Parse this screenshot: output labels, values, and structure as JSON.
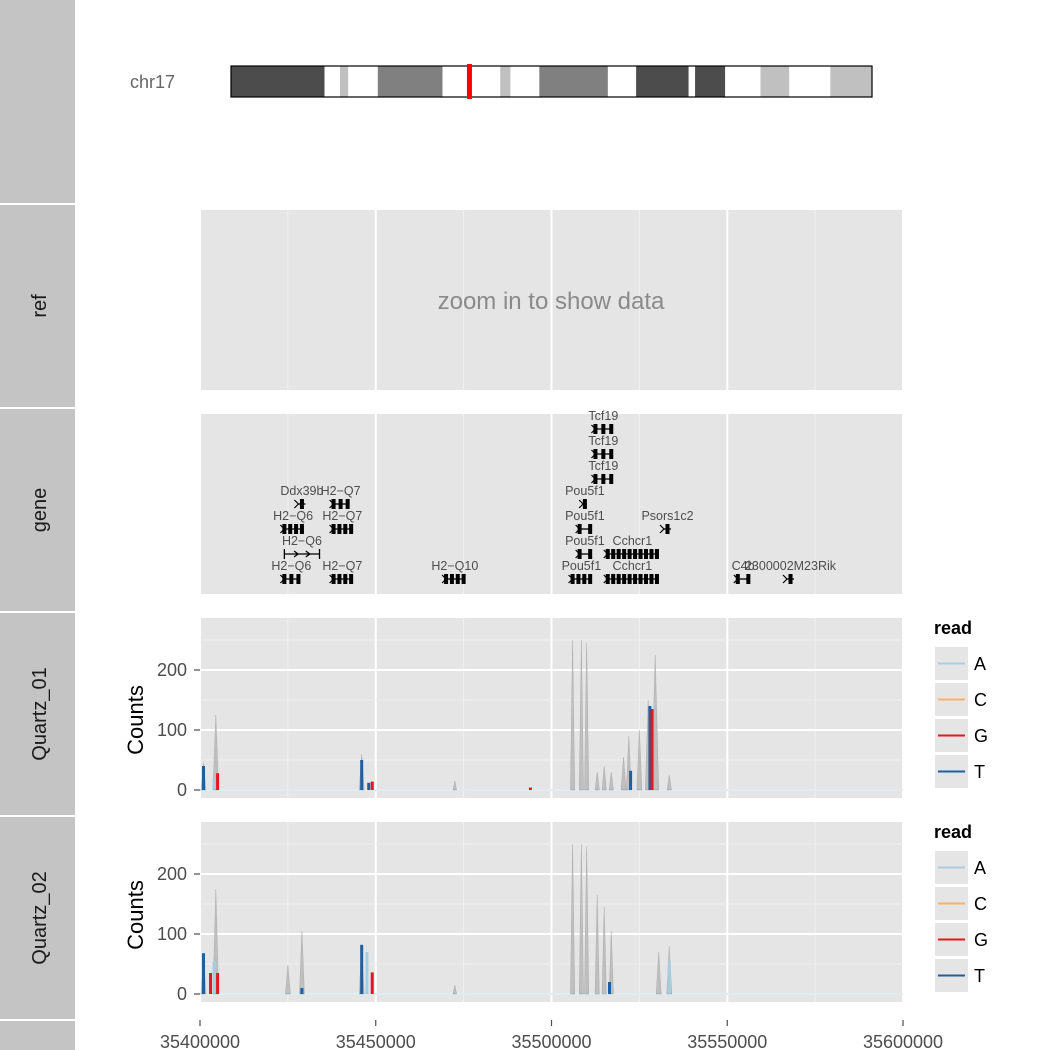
{
  "chart_data": {
    "type": "tracks",
    "xlim": [
      35400000,
      35600000
    ],
    "x_ticks": [
      35400000,
      35450000,
      35500000,
      35550000,
      35600000
    ],
    "x_tick_labels": [
      "35400000",
      "35450000",
      "35500000",
      "35550000",
      "35600000"
    ],
    "colors": {
      "A": "#a6cee3",
      "C": "#fdae6b",
      "G": "#e31a1c",
      "T": "#1f5fa0",
      "coverage": "#b9b9b9",
      "highlight": "#ff0000",
      "strip": "#c4c4c4",
      "panel": "#e5e5e5"
    },
    "tracks": [
      {
        "label": "chr17",
        "type": "ideogram",
        "chrom_label": "chr17",
        "highlight_fraction": 0.372,
        "bands": [
          {
            "start": 0.0,
            "end": 0.146,
            "shade": "#4c4c4c"
          },
          {
            "start": 0.146,
            "end": 0.17,
            "shade": "#ffffff"
          },
          {
            "start": 0.17,
            "end": 0.183,
            "shade": "#c0c0c0"
          },
          {
            "start": 0.183,
            "end": 0.229,
            "shade": "#ffffff"
          },
          {
            "start": 0.229,
            "end": 0.33,
            "shade": "#808080"
          },
          {
            "start": 0.33,
            "end": 0.42,
            "shade": "#ffffff"
          },
          {
            "start": 0.42,
            "end": 0.436,
            "shade": "#c0c0c0"
          },
          {
            "start": 0.436,
            "end": 0.481,
            "shade": "#ffffff"
          },
          {
            "start": 0.481,
            "end": 0.588,
            "shade": "#808080"
          },
          {
            "start": 0.588,
            "end": 0.632,
            "shade": "#ffffff"
          },
          {
            "start": 0.632,
            "end": 0.714,
            "shade": "#4c4c4c"
          },
          {
            "start": 0.714,
            "end": 0.724,
            "shade": "#ffffff"
          },
          {
            "start": 0.724,
            "end": 0.771,
            "shade": "#4c4c4c"
          },
          {
            "start": 0.771,
            "end": 0.826,
            "shade": "#ffffff"
          },
          {
            "start": 0.826,
            "end": 0.871,
            "shade": "#c0c0c0"
          },
          {
            "start": 0.871,
            "end": 0.935,
            "shade": "#ffffff"
          },
          {
            "start": 0.935,
            "end": 1.0,
            "shade": "#c0c0c0"
          }
        ]
      },
      {
        "label": "ref",
        "type": "message",
        "message": "zoom in to show data"
      },
      {
        "label": "gene",
        "type": "genes",
        "genes": [
          {
            "name": "H2−Q6",
            "start": 35424000,
            "end": 35428000,
            "row": 0,
            "style": "blocks"
          },
          {
            "name": "H2−Q7",
            "start": 35438000,
            "end": 35443000,
            "row": 0,
            "style": "blocks"
          },
          {
            "name": "H2−Q10",
            "start": 35470000,
            "end": 35475000,
            "row": 0,
            "style": "blocks"
          },
          {
            "name": "Pou5f1",
            "start": 35506000,
            "end": 35511000,
            "row": 0,
            "style": "blocks"
          },
          {
            "name": "Cchcr1",
            "start": 35516000,
            "end": 35530000,
            "row": 0,
            "style": "blocks"
          },
          {
            "name": "C4b",
            "start": 35553000,
            "end": 35556000,
            "row": 0,
            "style": "blocks"
          },
          {
            "name": "2300002M23Rik",
            "start": 35567000,
            "end": 35569000,
            "row": 0,
            "style": "blocks"
          },
          {
            "name": "H2−Q6",
            "start": 35424000,
            "end": 35434000,
            "row": 1,
            "style": "arrows"
          },
          {
            "name": "Pou5f1",
            "start": 35508000,
            "end": 35511000,
            "row": 1,
            "style": "blocks"
          },
          {
            "name": "Cchcr1",
            "start": 35516000,
            "end": 35530000,
            "row": 1,
            "style": "blocks"
          },
          {
            "name": "H2−Q6",
            "start": 35424000,
            "end": 35429000,
            "row": 2,
            "style": "blocks"
          },
          {
            "name": "H2−Q7",
            "start": 35438000,
            "end": 35443000,
            "row": 2,
            "style": "blocks"
          },
          {
            "name": "Pou5f1",
            "start": 35508000,
            "end": 35511000,
            "row": 2,
            "style": "blocks"
          },
          {
            "name": "Psors1c2",
            "start": 35532000,
            "end": 35534000,
            "row": 2,
            "style": "blocks"
          },
          {
            "name": "Ddx39b",
            "start": 35428000,
            "end": 35430000,
            "row": 3,
            "style": "blocks"
          },
          {
            "name": "H2−Q7",
            "start": 35438000,
            "end": 35442000,
            "row": 3,
            "style": "blocks"
          },
          {
            "name": "Pou5f1",
            "start": 35509000,
            "end": 35510000,
            "row": 3,
            "style": "blocks"
          },
          {
            "name": "Tcf19",
            "start": 35512500,
            "end": 35517000,
            "row": 4,
            "style": "blocks"
          },
          {
            "name": "Tcf19",
            "start": 35512500,
            "end": 35517000,
            "row": 5,
            "style": "blocks"
          },
          {
            "name": "Tcf19",
            "start": 35512500,
            "end": 35517000,
            "row": 6,
            "style": "blocks"
          }
        ]
      },
      {
        "label": "Quartz_01",
        "type": "coverage",
        "ylabel": "Counts",
        "ylim": [
          0,
          280
        ],
        "y_ticks": [
          0,
          100,
          200
        ],
        "coverage_peaks": [
          {
            "x": 35401000,
            "h": 45,
            "w": 700
          },
          {
            "x": 35404500,
            "h": 125,
            "w": 800
          },
          {
            "x": 35446000,
            "h": 60,
            "w": 700
          },
          {
            "x": 35472500,
            "h": 15,
            "w": 500
          },
          {
            "x": 35506000,
            "h": 250,
            "w": 600
          },
          {
            "x": 35508500,
            "h": 250,
            "w": 600
          },
          {
            "x": 35510000,
            "h": 245,
            "w": 600
          },
          {
            "x": 35513000,
            "h": 30,
            "w": 600
          },
          {
            "x": 35515000,
            "h": 40,
            "w": 600
          },
          {
            "x": 35517000,
            "h": 30,
            "w": 600
          },
          {
            "x": 35520500,
            "h": 55,
            "w": 700
          },
          {
            "x": 35522000,
            "h": 90,
            "w": 700
          },
          {
            "x": 35525000,
            "h": 100,
            "w": 700
          },
          {
            "x": 35527500,
            "h": 150,
            "w": 800
          },
          {
            "x": 35529500,
            "h": 225,
            "w": 1000
          },
          {
            "x": 35533500,
            "h": 25,
            "w": 600
          }
        ],
        "base_bars": [
          {
            "x": 35401000,
            "h": 40,
            "base": "T"
          },
          {
            "x": 35404000,
            "h": 18,
            "base": "A"
          },
          {
            "x": 35405000,
            "h": 28,
            "base": "G"
          },
          {
            "x": 35446000,
            "h": 50,
            "base": "T"
          },
          {
            "x": 35449000,
            "h": 14,
            "base": "G"
          },
          {
            "x": 35448000,
            "h": 12,
            "base": "T"
          },
          {
            "x": 35522500,
            "h": 32,
            "base": "T"
          },
          {
            "x": 35528000,
            "h": 140,
            "base": "T"
          },
          {
            "x": 35528600,
            "h": 135,
            "base": "G"
          },
          {
            "x": 35494000,
            "h": 4,
            "base": "G"
          }
        ]
      },
      {
        "label": "Quartz_02",
        "type": "coverage",
        "ylabel": "Counts",
        "ylim": [
          0,
          280
        ],
        "y_ticks": [
          0,
          100,
          200
        ],
        "coverage_peaks": [
          {
            "x": 35401000,
            "h": 65,
            "w": 700
          },
          {
            "x": 35404500,
            "h": 175,
            "w": 800
          },
          {
            "x": 35425000,
            "h": 48,
            "w": 700
          },
          {
            "x": 35429000,
            "h": 105,
            "w": 700
          },
          {
            "x": 35446000,
            "h": 80,
            "w": 700
          },
          {
            "x": 35472500,
            "h": 15,
            "w": 500
          },
          {
            "x": 35506000,
            "h": 250,
            "w": 600
          },
          {
            "x": 35508500,
            "h": 250,
            "w": 600
          },
          {
            "x": 35510000,
            "h": 245,
            "w": 600
          },
          {
            "x": 35513000,
            "h": 165,
            "w": 600
          },
          {
            "x": 35515000,
            "h": 145,
            "w": 600
          },
          {
            "x": 35517000,
            "h": 105,
            "w": 600
          },
          {
            "x": 35530500,
            "h": 70,
            "w": 700
          },
          {
            "x": 35533500,
            "h": 80,
            "w": 700
          }
        ],
        "base_bars": [
          {
            "x": 35401000,
            "h": 68,
            "base": "T"
          },
          {
            "x": 35403000,
            "h": 35,
            "base": "G"
          },
          {
            "x": 35404000,
            "h": 55,
            "base": "A"
          },
          {
            "x": 35405000,
            "h": 35,
            "base": "G"
          },
          {
            "x": 35446000,
            "h": 82,
            "base": "T"
          },
          {
            "x": 35447500,
            "h": 70,
            "base": "A"
          },
          {
            "x": 35449000,
            "h": 36,
            "base": "G"
          },
          {
            "x": 35429000,
            "h": 10,
            "base": "T"
          },
          {
            "x": 35533500,
            "h": 55,
            "base": "A"
          },
          {
            "x": 35516500,
            "h": 20,
            "base": "T"
          }
        ]
      }
    ],
    "legend": {
      "title": "read",
      "entries": [
        "A",
        "C",
        "G",
        "T"
      ]
    }
  }
}
